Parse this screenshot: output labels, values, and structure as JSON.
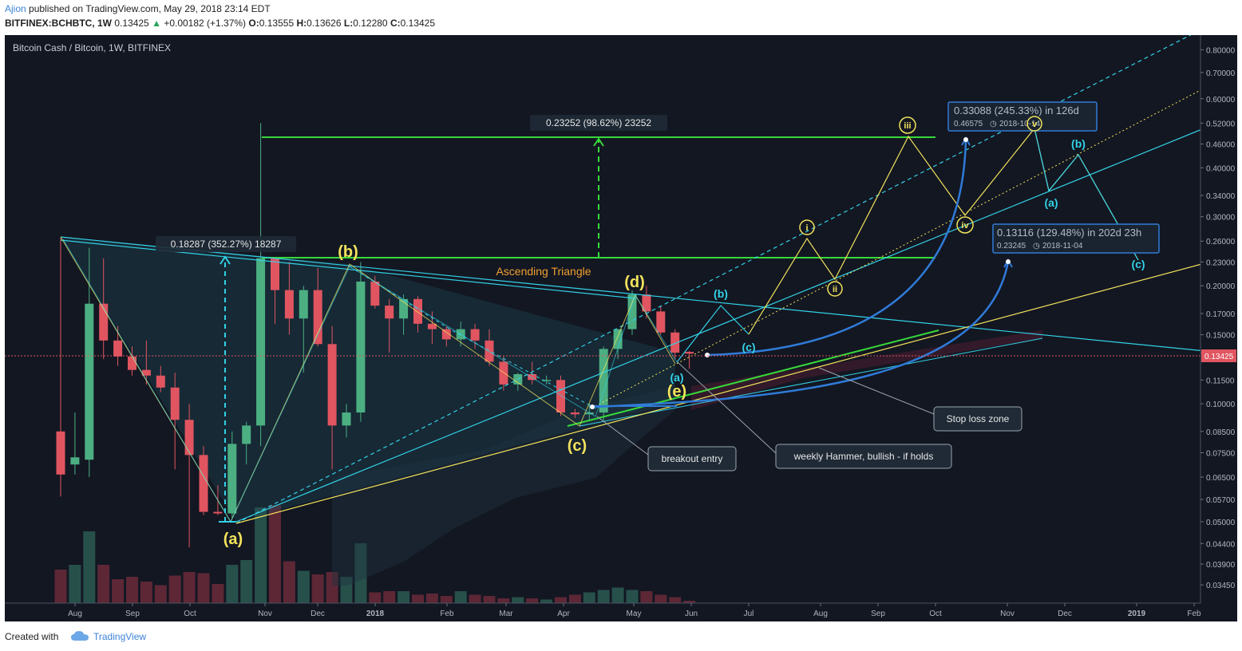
{
  "header": {
    "user": "Ajion",
    "published": "published on TradingView.com, May 29, 2018 23:14 EDT",
    "symbol": "BITFINEX:BCHBTC, 1W",
    "last": "0.13425",
    "change_arrow": "▲",
    "change": "+0.00182 (+1.37%)",
    "o_label": "O:",
    "o": "0.13555",
    "h_label": "H:",
    "h": "0.13626",
    "l_label": "L:",
    "l": "0.12280",
    "c_label": "C:",
    "c": "0.13425"
  },
  "footer": {
    "created": "Created with",
    "brand": "TradingView"
  },
  "colors": {
    "bg": "#131722",
    "up": "#4caf82",
    "down": "#e05560",
    "cyan": "#33d1e6",
    "yellow": "#f2e35c",
    "green": "#37d93a",
    "blue": "#2f7bd8",
    "orange": "#f0a030"
  },
  "chart_data": {
    "type": "candlestick",
    "title": "Bitcoin Cash / Bitcoin, 1W, BITFINEX",
    "scale": "log",
    "ylim": [
      0.031,
      0.84
    ],
    "y_ticks": [
      "0.80000",
      "0.70000",
      "0.60000",
      "0.52000",
      "0.46000",
      "0.40000",
      "0.34000",
      "0.30000",
      "0.26000",
      "0.23000",
      "0.20000",
      "0.17000",
      "0.15000",
      "0.13500",
      "0.11500",
      "0.10000",
      "0.08500",
      "0.07500",
      "0.06500",
      "0.05700",
      "0.05000",
      "0.04400",
      "0.03900",
      "0.03450"
    ],
    "x_labels": [
      "Aug",
      "Sep",
      "Oct",
      "Nov",
      "Dec",
      "2018",
      "Feb",
      "Mar",
      "Apr",
      "May",
      "Jun",
      "Jul",
      "Aug",
      "Sep",
      "Oct",
      "Nov",
      "Dec",
      "2019",
      "Feb"
    ],
    "last_price_label": "0.13425",
    "candles": [
      {
        "o": 0.085,
        "h": 0.265,
        "l": 0.058,
        "c": 0.066
      },
      {
        "o": 0.07,
        "h": 0.095,
        "l": 0.066,
        "c": 0.073
      },
      {
        "o": 0.072,
        "h": 0.25,
        "l": 0.065,
        "c": 0.18
      },
      {
        "o": 0.18,
        "h": 0.235,
        "l": 0.13,
        "c": 0.145
      },
      {
        "o": 0.145,
        "h": 0.158,
        "l": 0.125,
        "c": 0.132
      },
      {
        "o": 0.132,
        "h": 0.14,
        "l": 0.118,
        "c": 0.122
      },
      {
        "o": 0.122,
        "h": 0.145,
        "l": 0.112,
        "c": 0.118
      },
      {
        "o": 0.118,
        "h": 0.125,
        "l": 0.107,
        "c": 0.11
      },
      {
        "o": 0.11,
        "h": 0.12,
        "l": 0.068,
        "c": 0.091
      },
      {
        "o": 0.091,
        "h": 0.1,
        "l": 0.043,
        "c": 0.074
      },
      {
        "o": 0.074,
        "h": 0.078,
        "l": 0.052,
        "c": 0.053
      },
      {
        "o": 0.053,
        "h": 0.062,
        "l": 0.052,
        "c": 0.0525
      },
      {
        "o": 0.0525,
        "h": 0.085,
        "l": 0.051,
        "c": 0.079
      },
      {
        "o": 0.079,
        "h": 0.09,
        "l": 0.07,
        "c": 0.088
      },
      {
        "o": 0.088,
        "h": 0.52,
        "l": 0.078,
        "c": 0.235
      },
      {
        "o": 0.235,
        "h": 0.237,
        "l": 0.16,
        "c": 0.195
      },
      {
        "o": 0.195,
        "h": 0.23,
        "l": 0.15,
        "c": 0.165
      },
      {
        "o": 0.165,
        "h": 0.2,
        "l": 0.12,
        "c": 0.195
      },
      {
        "o": 0.195,
        "h": 0.222,
        "l": 0.14,
        "c": 0.142
      },
      {
        "o": 0.142,
        "h": 0.158,
        "l": 0.068,
        "c": 0.088
      },
      {
        "o": 0.088,
        "h": 0.1,
        "l": 0.082,
        "c": 0.095
      },
      {
        "o": 0.095,
        "h": 0.23,
        "l": 0.09,
        "c": 0.205
      },
      {
        "o": 0.205,
        "h": 0.212,
        "l": 0.175,
        "c": 0.178
      },
      {
        "o": 0.178,
        "h": 0.185,
        "l": 0.135,
        "c": 0.165
      },
      {
        "o": 0.165,
        "h": 0.19,
        "l": 0.15,
        "c": 0.185
      },
      {
        "o": 0.185,
        "h": 0.188,
        "l": 0.152,
        "c": 0.16
      },
      {
        "o": 0.16,
        "h": 0.172,
        "l": 0.142,
        "c": 0.155
      },
      {
        "o": 0.155,
        "h": 0.158,
        "l": 0.14,
        "c": 0.146
      },
      {
        "o": 0.146,
        "h": 0.162,
        "l": 0.14,
        "c": 0.155
      },
      {
        "o": 0.155,
        "h": 0.16,
        "l": 0.138,
        "c": 0.145
      },
      {
        "o": 0.145,
        "h": 0.155,
        "l": 0.125,
        "c": 0.128
      },
      {
        "o": 0.128,
        "h": 0.132,
        "l": 0.108,
        "c": 0.112
      },
      {
        "o": 0.112,
        "h": 0.12,
        "l": 0.108,
        "c": 0.119
      },
      {
        "o": 0.119,
        "h": 0.128,
        "l": 0.112,
        "c": 0.115
      },
      {
        "o": 0.115,
        "h": 0.118,
        "l": 0.112,
        "c": 0.115
      },
      {
        "o": 0.115,
        "h": 0.118,
        "l": 0.093,
        "c": 0.095
      },
      {
        "o": 0.095,
        "h": 0.097,
        "l": 0.092,
        "c": 0.094
      },
      {
        "o": 0.094,
        "h": 0.1,
        "l": 0.091,
        "c": 0.095
      },
      {
        "o": 0.095,
        "h": 0.14,
        "l": 0.09,
        "c": 0.138
      },
      {
        "o": 0.138,
        "h": 0.155,
        "l": 0.13,
        "c": 0.155
      },
      {
        "o": 0.155,
        "h": 0.195,
        "l": 0.15,
        "c": 0.19
      },
      {
        "o": 0.19,
        "h": 0.2,
        "l": 0.165,
        "c": 0.172
      },
      {
        "o": 0.172,
        "h": 0.178,
        "l": 0.15,
        "c": 0.152
      },
      {
        "o": 0.152,
        "h": 0.155,
        "l": 0.13,
        "c": 0.135
      },
      {
        "o": 0.1356,
        "h": 0.1363,
        "l": 0.1228,
        "c": 0.13425
      }
    ],
    "volume_max": 1.0,
    "volumes": [
      0.28,
      0.32,
      0.6,
      0.32,
      0.2,
      0.22,
      0.18,
      0.15,
      0.23,
      0.26,
      0.25,
      0.16,
      0.32,
      0.36,
      0.8,
      0.82,
      0.35,
      0.27,
      0.24,
      0.26,
      0.22,
      0.5,
      0.09,
      0.1,
      0.1,
      0.07,
      0.08,
      0.06,
      0.1,
      0.07,
      0.06,
      0.04,
      0.05,
      0.04,
      0.03,
      0.05,
      0.07,
      0.09,
      0.11,
      0.13,
      0.11,
      0.1,
      0.07,
      0.05,
      0.02
    ],
    "annotations": {
      "measure1": "0.18287 (352.27%) 18287",
      "measure2": "0.23252 (98.62%) 23252",
      "proj1_main": "0.33088 (245.33%) in 126d",
      "proj1_sub": "0.46575",
      "proj1_date": "2018-10-14",
      "proj2_main": "0.13116 (129.48%) in 202d 23h",
      "proj2_sub": "0.23245",
      "proj2_date": "2018-11-04",
      "triangle": "Ascending Triangle",
      "wave_a": "(a)",
      "wave_b": "(b)",
      "wave_c": "(c)",
      "wave_d": "(d)",
      "wave_e": "(e)",
      "small_a": "(a)",
      "proj_b": "(b)",
      "proj_c": "(c)",
      "roman_i": "i",
      "roman_ii": "ii",
      "roman_iii": "iii",
      "roman_iv": "iv",
      "roman_v": "v",
      "future_a": "(a)",
      "future_b": "(b)",
      "future_c": "(c)",
      "breakout": "breakout entry",
      "hammer": "weekly Hammer, bullish - if holds",
      "stoploss": "Stop loss zone"
    }
  }
}
